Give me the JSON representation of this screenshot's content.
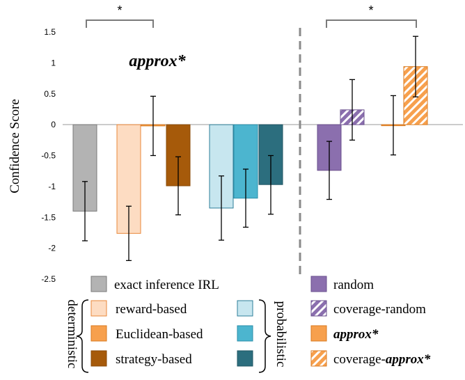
{
  "chart_data": {
    "type": "bar",
    "ylabel": "Confidence Score",
    "ylim": [
      -2.5,
      1.5
    ],
    "yticks": [
      "1.5",
      "1",
      "0.5",
      "0",
      "-0.5",
      "-1",
      "-1.5",
      "-2",
      "-2.5"
    ],
    "annotation": "approx*",
    "significance_marker": "*",
    "groups": {
      "deterministic": "deterministic",
      "probabilistic": "probabilistic"
    },
    "legend": [
      {
        "label": "exact inference IRL",
        "color": "#b3b3b3",
        "hatch": false
      },
      {
        "label": "random",
        "color": "#8b6fae",
        "hatch": false
      },
      {
        "label": "reward-based",
        "color": "#fddcc2",
        "hatch": false
      },
      {
        "label": "coverage-random",
        "color": "#8b6fae",
        "hatch": true
      },
      {
        "label": "Euclidean-based",
        "color": "#f7a04d",
        "hatch": false
      },
      {
        "label": "approx*",
        "color": "#f7a04d",
        "hatch": false
      },
      {
        "label": "strategy-based",
        "color": "#a65a0a",
        "hatch": false
      },
      {
        "label": "coverage-approx*",
        "color": "#f7a04d",
        "hatch": true
      }
    ],
    "series": [
      {
        "name": "exact inference IRL",
        "value": -1.4,
        "err_low": -1.88,
        "err_high": -0.92,
        "color": "#b3b3b3",
        "stroke": "#7a7a7a",
        "hatch": false
      },
      {
        "name": "reward-based (deterministic)",
        "value": -1.76,
        "err_low": -2.2,
        "err_high": -1.32,
        "color": "#fddcc2",
        "stroke": "#e9873a",
        "hatch": false
      },
      {
        "name": "Euclidean-based (deterministic)",
        "value": -0.02,
        "err_low": -0.5,
        "err_high": 0.46,
        "color": "#f7a04d",
        "stroke": "#d87a1f",
        "hatch": false
      },
      {
        "name": "strategy-based (deterministic)",
        "value": -0.99,
        "err_low": -1.46,
        "err_high": -0.52,
        "color": "#a65a0a",
        "stroke": "#8a4a07",
        "hatch": false
      },
      {
        "name": "reward-based (probabilistic)",
        "value": -1.35,
        "err_low": -1.87,
        "err_high": -0.83,
        "color": "#c7e6ef",
        "stroke": "#2e7f99",
        "hatch": false
      },
      {
        "name": "Euclidean-based (probabilistic)",
        "value": -1.19,
        "err_low": -1.66,
        "err_high": -0.72,
        "color": "#4cb5cf",
        "stroke": "#2a8ea8",
        "hatch": false
      },
      {
        "name": "strategy-based (probabilistic)",
        "value": -0.97,
        "err_low": -1.45,
        "err_high": -0.5,
        "color": "#2c6e7e",
        "stroke": "#1f5663",
        "hatch": false
      },
      {
        "name": "random",
        "value": -0.74,
        "err_low": -1.21,
        "err_high": -0.27,
        "color": "#8b6fae",
        "stroke": "#6a4f8d",
        "hatch": false
      },
      {
        "name": "coverage-random",
        "value": 0.24,
        "err_low": -0.25,
        "err_high": 0.73,
        "color": "#8b6fae",
        "stroke": "#6a4f8d",
        "hatch": true
      },
      {
        "name": "approx*",
        "value": -0.01,
        "err_low": -0.49,
        "err_high": 0.47,
        "color": "#f7a04d",
        "stroke": "#d87a1f",
        "hatch": false
      },
      {
        "name": "coverage-approx*",
        "value": 0.94,
        "err_low": 0.45,
        "err_high": 1.43,
        "color": "#f7a04d",
        "stroke": "#d87a1f",
        "hatch": true
      }
    ]
  }
}
